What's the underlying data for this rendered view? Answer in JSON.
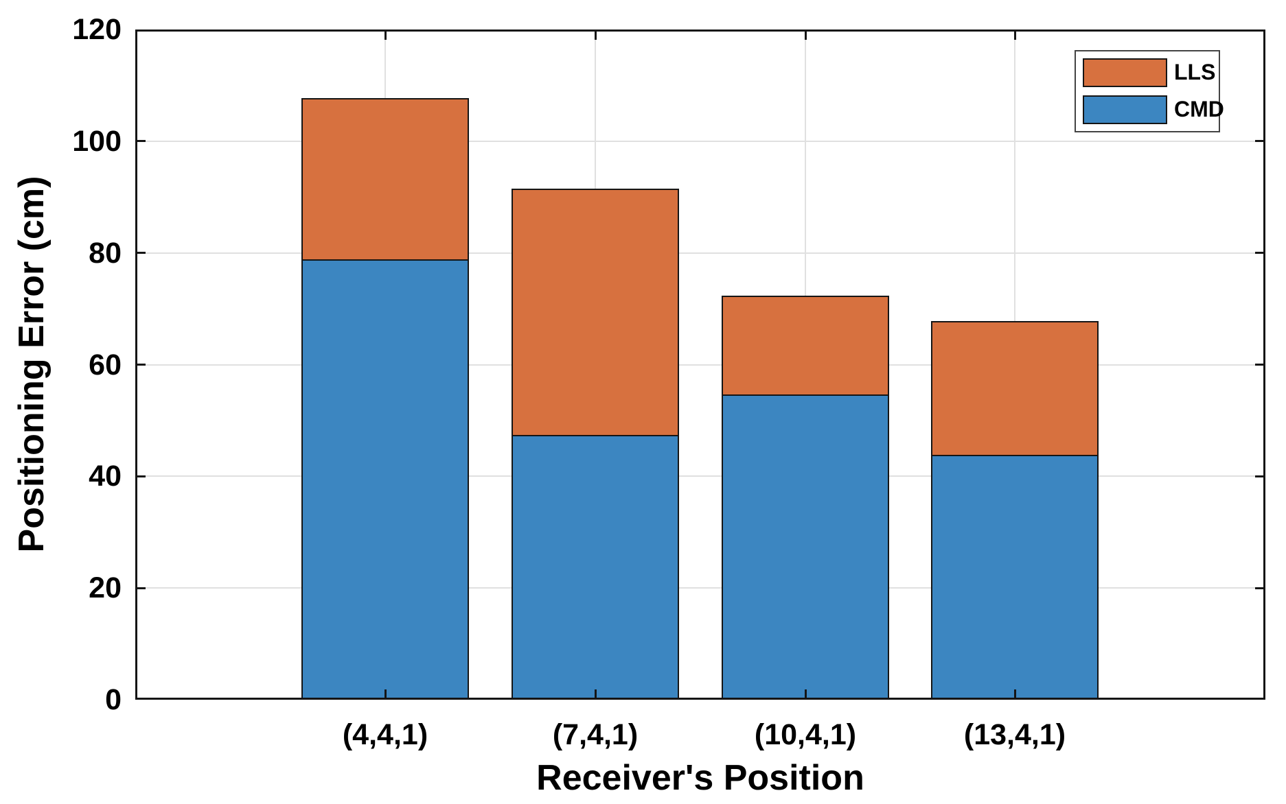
{
  "figure": {
    "background": "#FFFFFF"
  },
  "colors": {
    "cmd": "#3C86C1",
    "lls": "#D7713F",
    "edge": "#151515",
    "grid": "#E0E0E0",
    "axis": "#151515",
    "text": "#000000",
    "legend_border": "#434343"
  },
  "legend": {
    "items": [
      {
        "label": "LLS",
        "color_key": "lls"
      },
      {
        "label": "CMD",
        "color_key": "cmd"
      }
    ]
  },
  "chart_data": {
    "type": "bar",
    "stacked": true,
    "title": "",
    "xlabel": "Receiver's Position",
    "ylabel": "Positioning Error (cm)",
    "categories": [
      "(4,4,1)",
      "(7,4,1)",
      "(10,4,1)",
      "(13,4,1)"
    ],
    "series": [
      {
        "name": "CMD",
        "color_key": "cmd",
        "values": [
          78.8,
          47.4,
          54.6,
          43.8
        ]
      },
      {
        "name": "LLS",
        "color_key": "lls",
        "values": [
          28.9,
          44.1,
          17.7,
          24.0
        ]
      }
    ],
    "stack_totals": [
      107.7,
      91.5,
      72.3,
      67.8
    ],
    "ylim": [
      0,
      120
    ],
    "yticks": [
      0,
      20,
      40,
      60,
      80,
      100,
      120
    ],
    "grid": true,
    "grid_vertical_at_categories": true,
    "legend_position": "northeast",
    "legend_order": [
      "LLS",
      "CMD"
    ]
  }
}
